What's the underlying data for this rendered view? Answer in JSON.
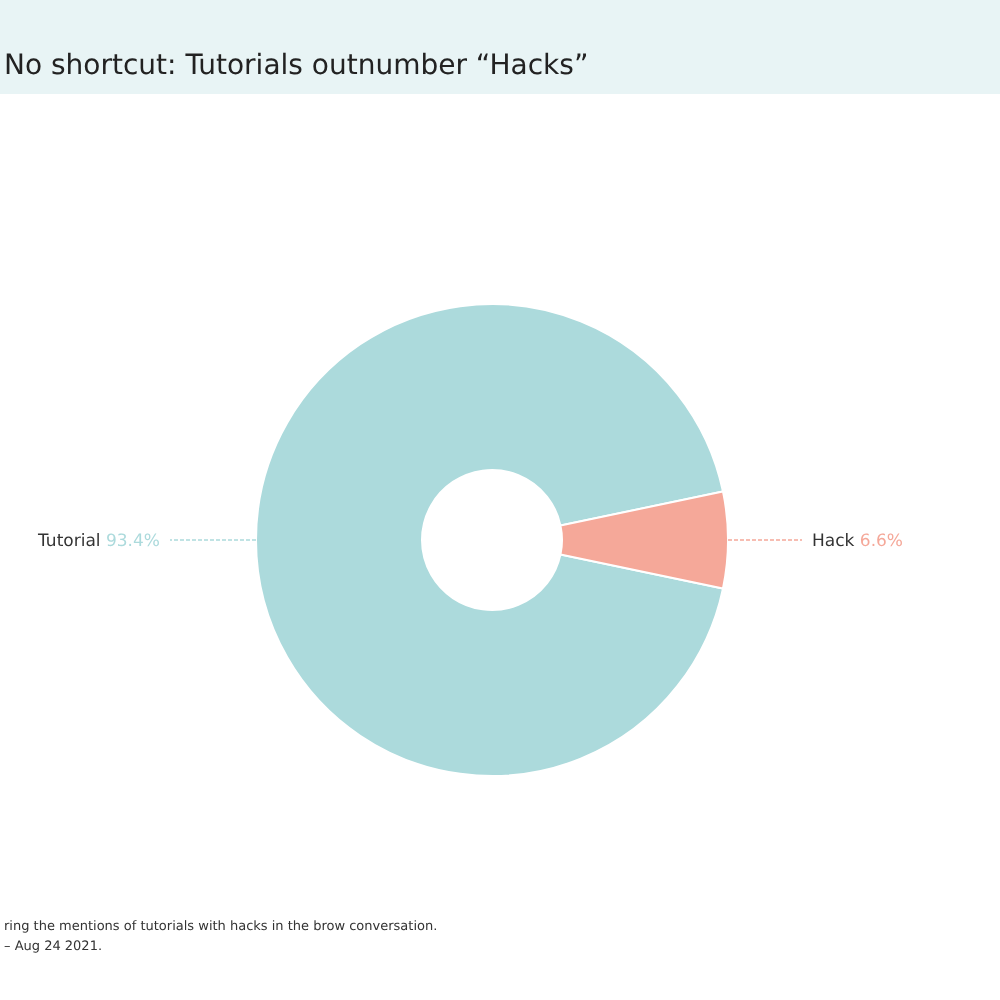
{
  "chart_data": {
    "type": "donut",
    "title": "No shortcut: Tutorials outnumber “Hacks”",
    "categories": [
      "Tutorial",
      "Hack"
    ],
    "values": [
      93.4,
      6.6
    ],
    "colors": [
      "#acdadc",
      "#f5a899"
    ],
    "value_labels": [
      "93.4%",
      "6.6%"
    ],
    "annotations": [
      "ring the mentions of tutorials with hacks in the brow conversation.",
      "– Aug 24 2021."
    ]
  }
}
